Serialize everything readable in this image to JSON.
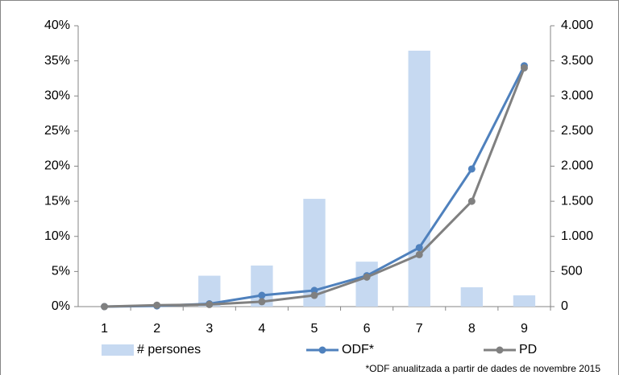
{
  "chart_data": {
    "type": "bar-line",
    "categories": [
      "1",
      "2",
      "3",
      "4",
      "5",
      "6",
      "7",
      "8",
      "9"
    ],
    "series": [
      {
        "name": "# persones",
        "type": "bar",
        "axis": "y2",
        "color": "#c6d9f1",
        "values": [
          0,
          0,
          440,
          585,
          1535,
          640,
          3645,
          275,
          160
        ]
      },
      {
        "name": "ODF*",
        "type": "line",
        "axis": "y",
        "color": "#4f81bd",
        "values": [
          0,
          0.1,
          0.4,
          1.6,
          2.3,
          4.4,
          8.4,
          19.6,
          34.3
        ]
      },
      {
        "name": "PD",
        "type": "line",
        "axis": "y",
        "color": "#808080",
        "values": [
          0,
          0.2,
          0.3,
          0.7,
          1.6,
          4.2,
          7.4,
          15,
          34
        ]
      }
    ],
    "ylim": [
      0,
      40
    ],
    "yticks": [
      {
        "value": 0,
        "label": "0%"
      },
      {
        "value": 5,
        "label": "5%"
      },
      {
        "value": 10,
        "label": "10%"
      },
      {
        "value": 15,
        "label": "15%"
      },
      {
        "value": 20,
        "label": "20%"
      },
      {
        "value": 25,
        "label": "25%"
      },
      {
        "value": 30,
        "label": "30%"
      },
      {
        "value": 35,
        "label": "35%"
      },
      {
        "value": 40,
        "label": "40%"
      }
    ],
    "y2lim": [
      0,
      4000
    ],
    "y2ticks": [
      0,
      500,
      {
        "value": 1000,
        "label": "1.000"
      },
      {
        "value": 1500,
        "label": "1.500"
      },
      {
        "value": 2000,
        "label": "2.000"
      },
      {
        "value": 2500,
        "label": "2.500"
      },
      {
        "value": 3000,
        "label": "3.000"
      },
      {
        "value": 3500,
        "label": "3.500"
      },
      {
        "value": 4000,
        "label": "4.000"
      }
    ],
    "legend": "bottom",
    "footnote": "*ODF anualitzada a partir de dades de novembre 2015"
  }
}
